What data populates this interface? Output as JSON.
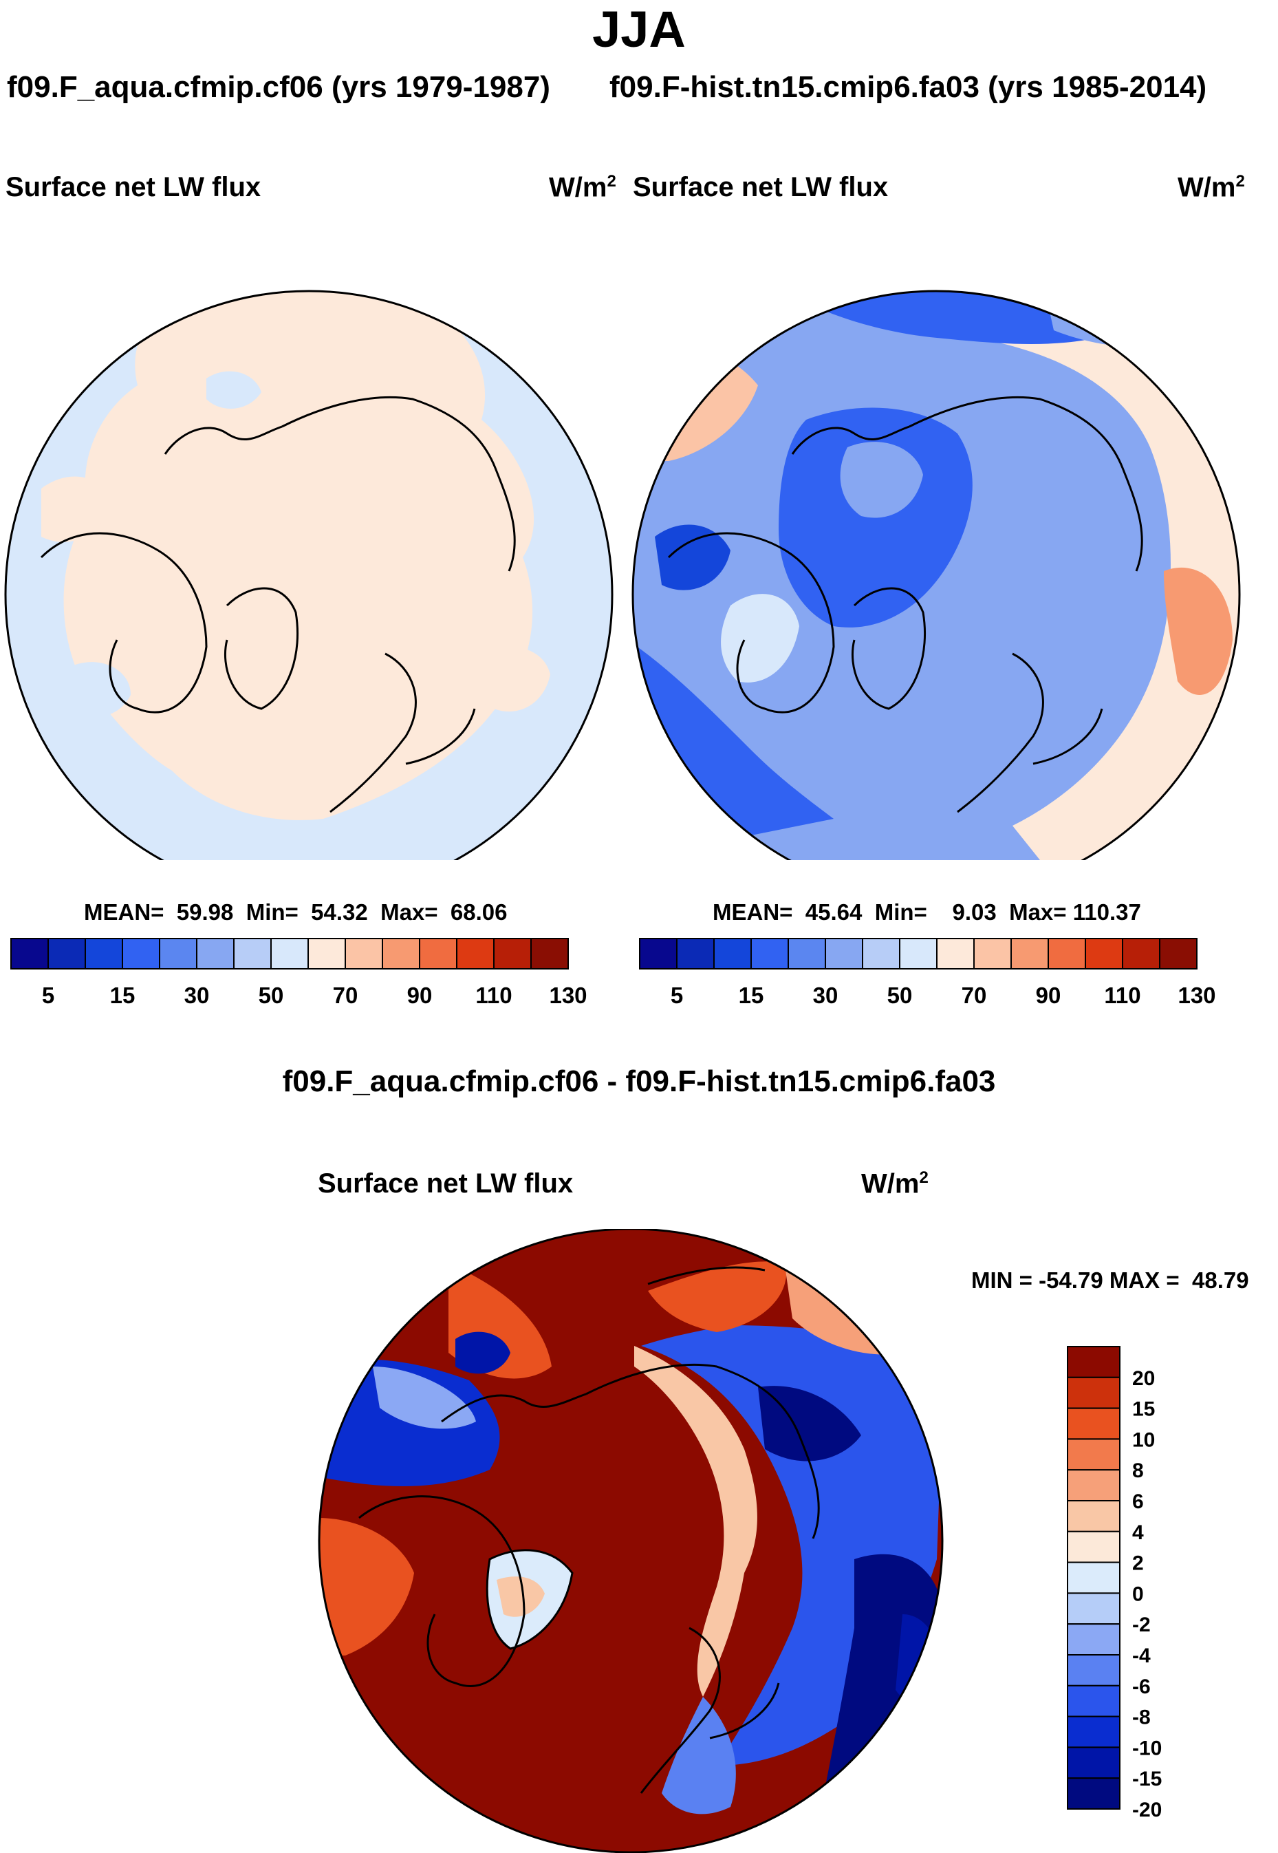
{
  "header": {
    "season": "JJA",
    "title_left": "f09.F_aqua.cfmip.cf06 (yrs 1979-1987)",
    "title_right": "f09.F-hist.tn15.cmip6.fa03 (yrs 1985-2014)",
    "diff_title": "f09.F_aqua.cfmip.cf06 - f09.F-hist.tn15.cmip6.fa03"
  },
  "palettes": {
    "abs": [
      "#08088e",
      "#0b2ab6",
      "#1446da",
      "#3162f2",
      "#5b86f0",
      "#87a7f2",
      "#b7cdf7",
      "#d8e8fb",
      "#fde9da",
      "#fbc4a6",
      "#f79a71",
      "#f06c40",
      "#dd3a12",
      "#b71f07",
      "#8a0e03"
    ],
    "diff": [
      "#000a80",
      "#0015a8",
      "#0a2dd0",
      "#2b55ec",
      "#5a81f2",
      "#8ba8f4",
      "#b5cdf8",
      "#dbebfb",
      "#fce9d9",
      "#f9c7a6",
      "#f6a079",
      "#f27a4c",
      "#e95220",
      "#cd310c",
      "#8c0a00"
    ]
  },
  "chart_data": [
    {
      "type": "heatmap",
      "panel": "left",
      "title": "f09.F_aqua.cfmip.cf06 (yrs 1979-1987)",
      "variable": "Surface net LW flux",
      "units": "W/m",
      "units_exp": "2",
      "stats": {
        "mean_label": "MEAN=",
        "mean": "59.98",
        "min_label": "Min=",
        "min": "54.32",
        "max_label": "Max=",
        "max": "68.06"
      },
      "colorbar_levels": [
        5,
        10,
        15,
        20,
        25,
        30,
        40,
        50,
        60,
        70,
        80,
        90,
        100,
        110,
        120,
        130
      ],
      "colorbar_tick_labels": [
        "5",
        "15",
        "30",
        "50",
        "70",
        "90",
        "110",
        "130"
      ]
    },
    {
      "type": "heatmap",
      "panel": "right",
      "title": "f09.F-hist.tn15.cmip6.fa03 (yrs 1985-2014)",
      "variable": "Surface net LW flux",
      "units": "W/m",
      "units_exp": "2",
      "stats": {
        "mean_label": "MEAN=",
        "mean": "45.64",
        "min_label": "Min=",
        "min": "9.03",
        "max_label": "Max=",
        "max": "110.37"
      },
      "colorbar_levels": [
        5,
        10,
        15,
        20,
        25,
        30,
        40,
        50,
        60,
        70,
        80,
        90,
        100,
        110,
        120,
        130
      ],
      "colorbar_tick_labels": [
        "5",
        "15",
        "30",
        "50",
        "70",
        "90",
        "110",
        "130"
      ]
    },
    {
      "type": "heatmap",
      "panel": "difference",
      "title": "f09.F_aqua.cfmip.cf06 - f09.F-hist.tn15.cmip6.fa03",
      "variable": "Surface net LW flux",
      "units": "W/m",
      "units_exp": "2",
      "stats": {
        "min_label": "MIN =",
        "min": "-54.79",
        "max_label": "MAX =",
        "max": "48.79"
      },
      "colorbar_tick_labels": [
        "20",
        "15",
        "10",
        "8",
        "6",
        "4",
        "2",
        "0",
        "-2",
        "-4",
        "-6",
        "-8",
        "-10",
        "-15",
        "-20"
      ]
    }
  ]
}
